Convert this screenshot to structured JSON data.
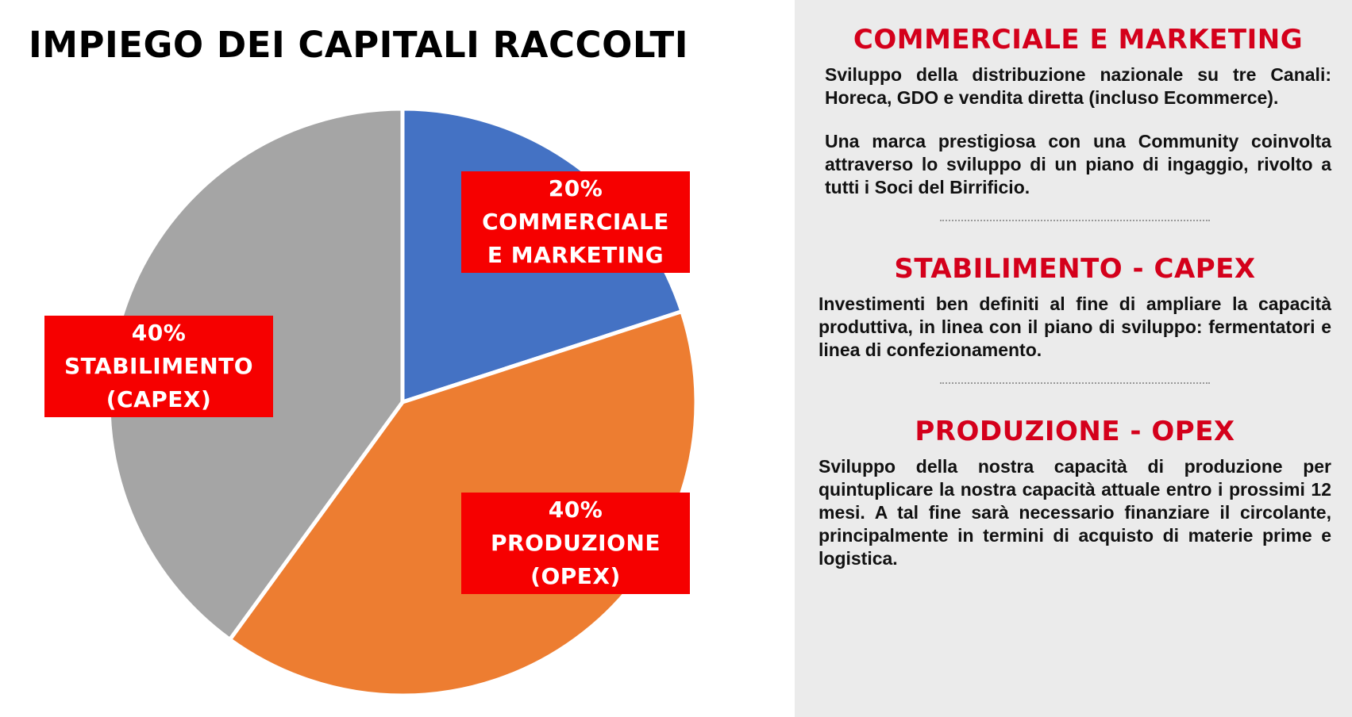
{
  "chart_data": {
    "type": "pie",
    "title": "IMPIEGO DEI CAPITALI RACCOLTI",
    "categories": [
      "COMMERCIALE E MARKETING",
      "PRODUZIONE (OPEX)",
      "STABILIMENTO (CAPEX)"
    ],
    "values": [
      20,
      40,
      40
    ],
    "value_labels": [
      "20%",
      "40%",
      "40%"
    ],
    "colors": [
      "#4472c4",
      "#ed7d31",
      "#a5a5a5"
    ]
  },
  "panel": {
    "sections": [
      {
        "heading": "COMMERCIALE E MARKETING",
        "paragraphs": [
          "Sviluppo della distribuzione nazionale su tre Canali: Horeca, GDO e vendita diretta (incluso Ecommerce).",
          "Una marca prestigiosa con una Community coinvolta attraverso lo sviluppo di un piano di ingaggio, rivolto a tutti i Soci del Birrificio."
        ]
      },
      {
        "heading": "STABILIMENTO - CAPEX",
        "paragraphs": [
          "Investimenti ben definiti al fine di ampliare la capacità produttiva, in linea con il piano di sviluppo: fermentatori e linea di confezionamento."
        ]
      },
      {
        "heading": "PRODUZIONE - OPEX",
        "paragraphs": [
          "Sviluppo della nostra capacità di produzione per quintuplicare la nostra capacità attuale entro i prossimi 12 mesi. A tal fine sarà necessario finanziare il circolante, principalmente in termini di acquisto di materie prime e logistica."
        ]
      }
    ]
  }
}
